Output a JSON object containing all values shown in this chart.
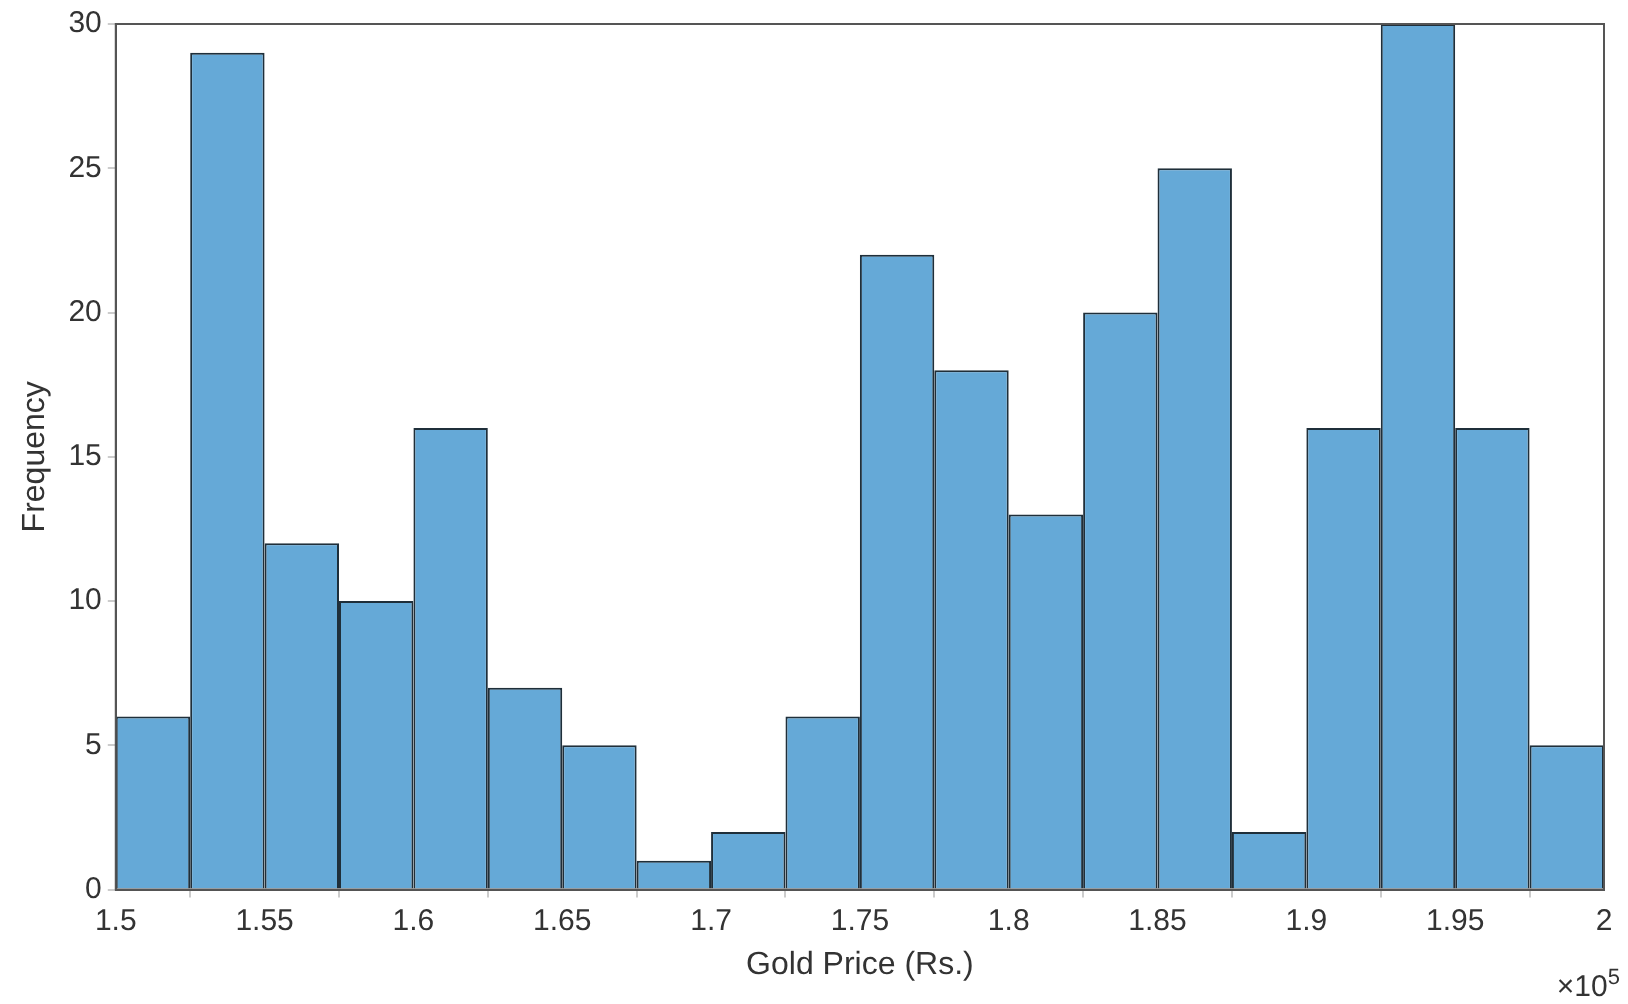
{
  "chart_data": {
    "type": "histogram",
    "xlabel": "Gold Price (Rs.)",
    "ylabel": "Frequency",
    "bins": [
      1.5,
      1.525,
      1.55,
      1.575,
      1.6,
      1.625,
      1.65,
      1.675,
      1.7,
      1.725,
      1.75,
      1.775,
      1.8,
      1.825,
      1.85,
      1.875,
      1.9,
      1.925,
      1.95,
      1.975,
      2
    ],
    "values": [
      6,
      29,
      12,
      10,
      16,
      7,
      5,
      1,
      2,
      6,
      22,
      18,
      13,
      20,
      25,
      2,
      16,
      30,
      16,
      5
    ],
    "color": "#65a9d7",
    "xlim": [
      1.5,
      2
    ],
    "xticks": [
      1.5,
      1.55,
      1.6,
      1.65,
      1.7,
      1.75,
      1.8,
      1.85,
      1.9,
      1.95,
      2
    ],
    "ylim": [
      0,
      30
    ],
    "yticks": [
      0,
      5,
      10,
      15,
      20,
      25,
      30
    ],
    "grid": false,
    "annotations": [
      "×10$^{5}$"
    ]
  }
}
